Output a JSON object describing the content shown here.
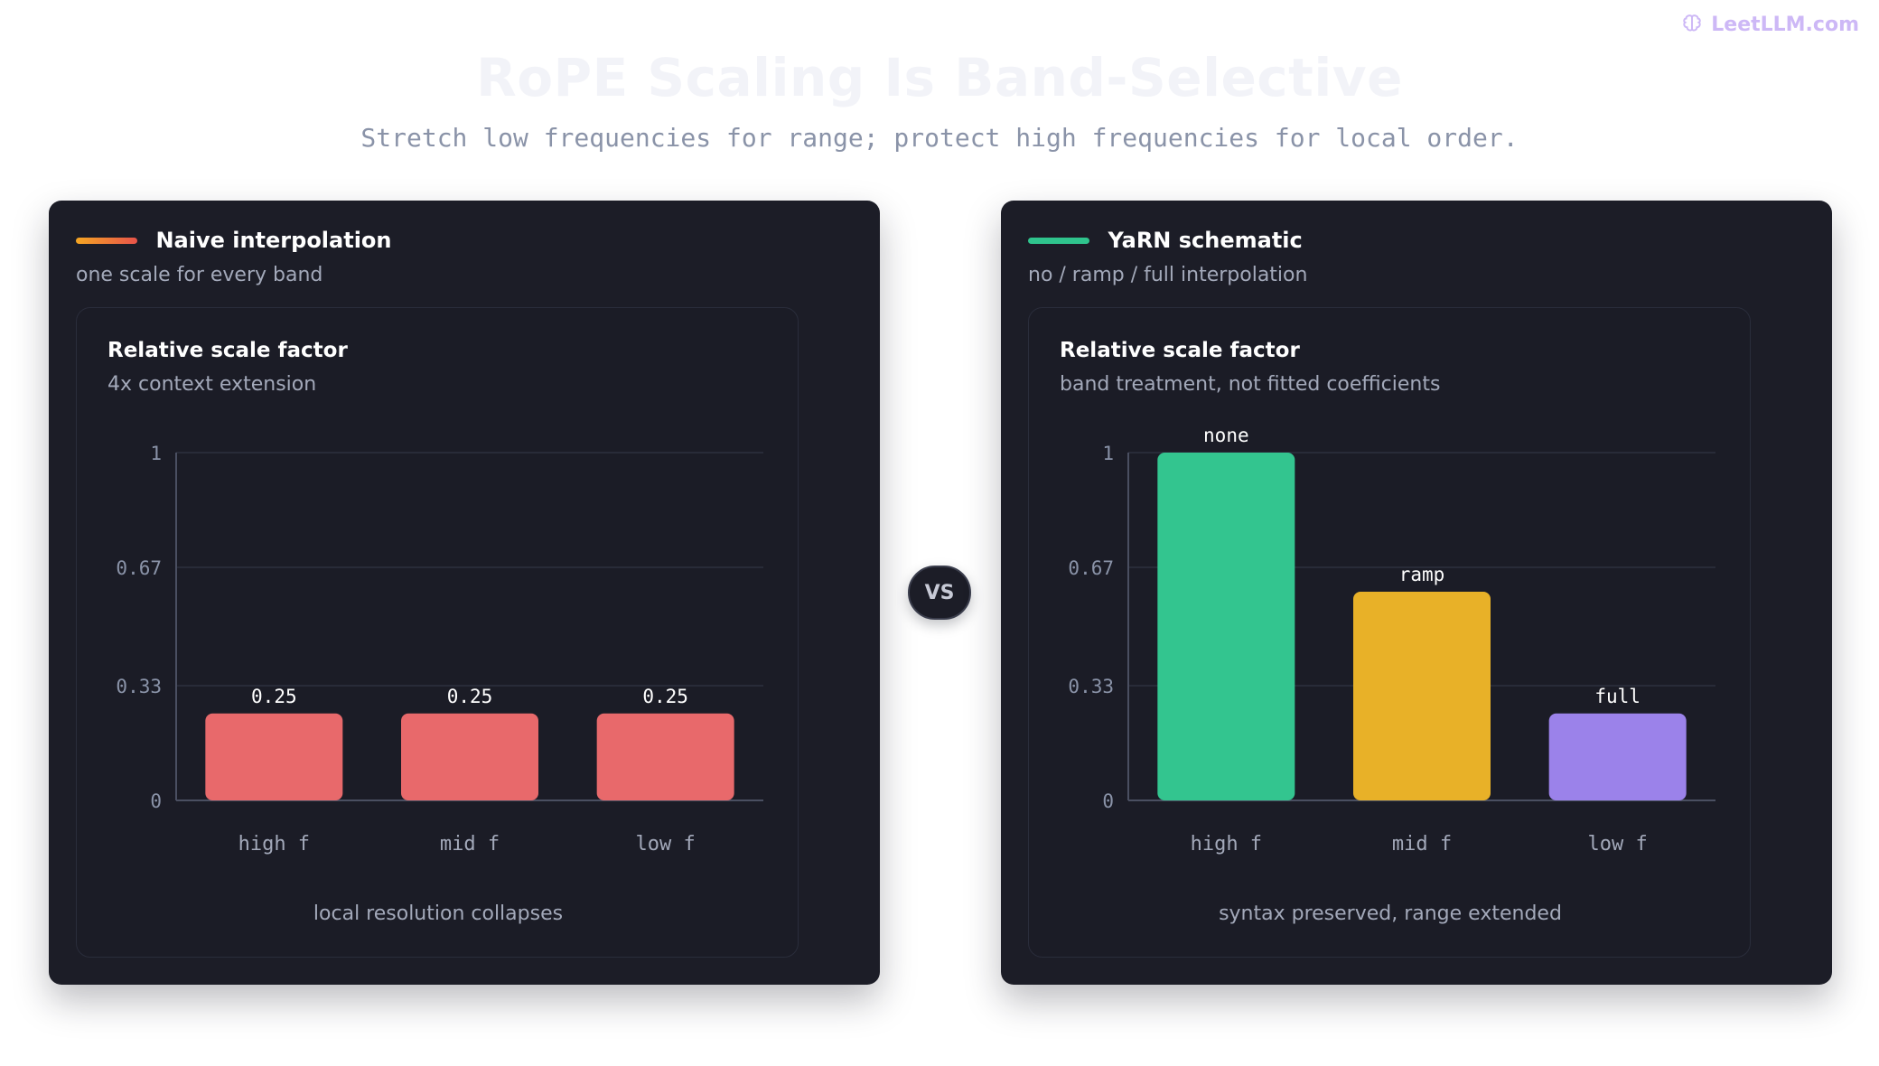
{
  "brand": {
    "name": "LeetLLM.com",
    "icon": "brain-icon",
    "color": "#cdb8f6"
  },
  "title": "RoPE Scaling Is Band-Selective",
  "subtitle": "Stretch low frequencies for range; protect high frequencies for local order.",
  "vs_label": "VS",
  "panels": [
    {
      "title": "Naive interpolation",
      "subtitle": "one scale for every band",
      "accent": [
        "#f5a623",
        "#e8534a"
      ],
      "card_title": "Relative scale factor",
      "card_subtitle": "4x context extension",
      "caption": "local resolution collapses"
    },
    {
      "title": "YaRN schematic",
      "subtitle": "no / ramp / full interpolation",
      "accent": [
        "#2fc48d",
        "#2fc48d"
      ],
      "card_title": "Relative scale factor",
      "card_subtitle": "band treatment, not fitted coefficients",
      "caption": "syntax preserved, range extended"
    }
  ],
  "chart_data": [
    {
      "type": "bar",
      "categories": [
        "high f",
        "mid f",
        "low f"
      ],
      "values": [
        0.25,
        0.25,
        0.25
      ],
      "data_labels": [
        "0.25",
        "0.25",
        "0.25"
      ],
      "colors": [
        "#e8696b",
        "#e8696b",
        "#e8696b"
      ],
      "ylim": [
        0,
        1
      ],
      "yticks": [
        0,
        0.33,
        0.67,
        1
      ],
      "ytick_labels": [
        "0",
        "0.33",
        "0.67",
        "1"
      ],
      "grid": true
    },
    {
      "type": "bar",
      "categories": [
        "high f",
        "mid f",
        "low f"
      ],
      "values": [
        1,
        0.6,
        0.25
      ],
      "data_labels": [
        "none",
        "ramp",
        "full"
      ],
      "colors": [
        "#33c58f",
        "#e8b128",
        "#9b82ea"
      ],
      "ylim": [
        0,
        1
      ],
      "yticks": [
        0,
        0.33,
        0.67,
        1
      ],
      "ytick_labels": [
        "0",
        "0.33",
        "0.67",
        "1"
      ],
      "grid": true
    }
  ]
}
